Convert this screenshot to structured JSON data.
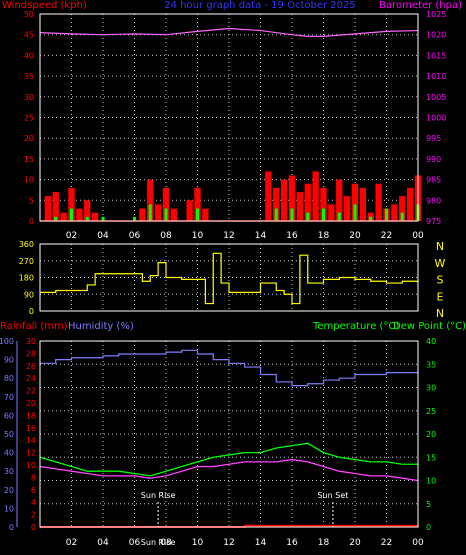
{
  "colors": {
    "background": "#000000",
    "frame": "#ffffff",
    "grid": "#c8c8c8",
    "windspeed_axis": "#ff0000",
    "barometer_axis": "#ff00ff",
    "title": "#3333ff",
    "direction_axis": "#ffff00",
    "rainfall_axis": "#ff0000",
    "humidity_axis": "#7b7bff",
    "temp_axis": "#00ff00",
    "dewpoint_axis": "#00ff00",
    "barometer_line": "#ff66ff",
    "wind_gust": "#ff0000",
    "wind_avg": "#00ff00",
    "wind_peak": "#ffffff",
    "direction_line": "#ffff00",
    "humidity_line": "#8080ff",
    "temp_line": "#00ff00",
    "dewpoint_line": "#ff44ff",
    "rain_line": "#ff0000",
    "marker_text": "#ffffff"
  },
  "chart_data": [
    {
      "type": "line",
      "id": "wind_baro",
      "title": "24 hour graph data - 19 October 2025",
      "ylabel_left": "Windspeed (kph)",
      "ylabel_right": "Barometer (hpa)",
      "grid": true,
      "x_ticks": [
        "02",
        "04",
        "06",
        "08",
        "10",
        "12",
        "14",
        "16",
        "18",
        "20",
        "22",
        "00"
      ],
      "ylim_left": [
        0,
        50
      ],
      "y_ticks_left": [
        0,
        5,
        10,
        15,
        20,
        25,
        30,
        35,
        40,
        45,
        50
      ],
      "ylim_right": [
        975,
        1025
      ],
      "y_ticks_right": [
        975,
        980,
        985,
        990,
        995,
        1000,
        1005,
        1010,
        1015,
        1020,
        1025
      ],
      "series": [
        {
          "name": "Barometer",
          "axis": "right",
          "x": [
            0,
            2,
            4,
            6,
            8,
            10,
            12,
            14,
            16,
            17,
            18,
            20,
            22,
            24
          ],
          "values": [
            1020.5,
            1020.2,
            1020.0,
            1020.2,
            1020.0,
            1020.8,
            1021.5,
            1021.0,
            1020.0,
            1019.6,
            1019.6,
            1020.2,
            1020.8,
            1021.0
          ]
        },
        {
          "name": "Gust",
          "axis": "left",
          "x": [
            0,
            0.5,
            1,
            1.5,
            2,
            2.5,
            3,
            3.5,
            4,
            4.5,
            5,
            5.5,
            6,
            6.5,
            7,
            7.5,
            8,
            8.5,
            9,
            9.5,
            10,
            10.5,
            11,
            11.5,
            12,
            12.5,
            13,
            13.5,
            14,
            14.5,
            15,
            15.5,
            16,
            16.5,
            17,
            17.5,
            18,
            18.5,
            19,
            19.5,
            20,
            20.5,
            21,
            21.5,
            22,
            22.5,
            23,
            23.5,
            24
          ],
          "values": [
            0,
            6,
            7,
            2,
            8,
            3,
            5,
            2,
            0,
            0,
            0,
            0,
            0,
            3,
            10,
            4,
            8,
            3,
            0,
            5,
            8,
            3,
            0,
            0,
            0,
            0,
            0,
            0,
            0,
            12,
            8,
            10,
            11,
            7,
            9,
            12,
            8,
            4,
            10,
            6,
            9,
            8,
            2,
            9,
            3,
            4,
            6,
            8,
            11
          ]
        },
        {
          "name": "Average",
          "axis": "left",
          "x": [
            0,
            1,
            2,
            3,
            4,
            5,
            6,
            7,
            8,
            9,
            10,
            11,
            12,
            13,
            14,
            15,
            16,
            17,
            18,
            19,
            20,
            21,
            22,
            23,
            24
          ],
          "values": [
            0,
            1,
            3,
            1,
            1,
            0,
            1,
            4,
            3,
            0,
            3,
            0,
            0,
            0,
            0,
            3,
            3,
            2,
            3,
            2,
            4,
            1,
            3,
            2,
            4
          ]
        }
      ]
    },
    {
      "type": "line",
      "id": "direction",
      "ylabel_right": [
        "N",
        "W",
        "S",
        "E",
        "N"
      ],
      "grid": true,
      "ylim": [
        0,
        360
      ],
      "y_ticks": [
        0,
        90,
        180,
        270,
        360
      ],
      "series": [
        {
          "name": "Wind Direction",
          "x": [
            0,
            1,
            2,
            3,
            3.5,
            4,
            5,
            6,
            6.5,
            7,
            7.5,
            8,
            9,
            10,
            10.5,
            11,
            11.5,
            12,
            13,
            14,
            15,
            15.5,
            16,
            16.5,
            17,
            18,
            19,
            20,
            21,
            22,
            23,
            24
          ],
          "values": [
            100,
            110,
            110,
            140,
            200,
            200,
            200,
            200,
            160,
            190,
            260,
            180,
            170,
            170,
            40,
            310,
            150,
            100,
            100,
            150,
            110,
            90,
            40,
            300,
            150,
            170,
            180,
            170,
            160,
            150,
            160,
            150
          ]
        }
      ]
    },
    {
      "type": "line",
      "id": "rain_hum_temp",
      "ylabel_left_1": "Rainfall (mm)",
      "ylabel_left_2": "Humidity (%)",
      "ylabel_right_1": "Temperature (°C)",
      "ylabel_right_2": "Dew Point (°C)",
      "grid": true,
      "rain_ticks": [
        0,
        2,
        4,
        6,
        8,
        10,
        12,
        14,
        16,
        18,
        20,
        22,
        24,
        26,
        28,
        30
      ],
      "humidity_ticks": [
        0,
        10,
        20,
        30,
        40,
        50,
        60,
        70,
        80,
        90,
        100
      ],
      "temp_ticks": [
        0,
        5,
        10,
        15,
        20,
        25,
        30,
        35,
        40
      ],
      "ylim_rain": [
        0,
        30
      ],
      "ylim_humidity": [
        0,
        100
      ],
      "ylim_temp": [
        0,
        40
      ],
      "annotations": [
        {
          "text": "Sun Rise",
          "x": 7.5
        },
        {
          "text": "Sun Set",
          "x": 18.6
        }
      ],
      "sun_label": "Sun Rise",
      "series": [
        {
          "name": "Humidity",
          "axis": "humidity",
          "x": [
            0,
            1,
            2,
            3,
            4,
            5,
            6,
            7,
            8,
            9,
            10,
            11,
            12,
            13,
            14,
            15,
            16,
            17,
            18,
            19,
            20,
            21,
            22,
            23,
            24
          ],
          "values": [
            88,
            90,
            91,
            91,
            92,
            93,
            93,
            93,
            94,
            95,
            93,
            90,
            88,
            86,
            82,
            78,
            76,
            77,
            79,
            80,
            82,
            82,
            83,
            83,
            83
          ]
        },
        {
          "name": "Temperature",
          "axis": "temp",
          "x": [
            0,
            1,
            2,
            3,
            4,
            5,
            6,
            7,
            8,
            9,
            10,
            11,
            12,
            13,
            14,
            15,
            16,
            17,
            18,
            19,
            20,
            21,
            22,
            23,
            24
          ],
          "values": [
            15,
            14,
            13,
            12,
            12,
            12,
            11.5,
            11,
            12,
            13,
            14,
            15,
            15.5,
            16,
            16,
            17,
            17.5,
            18,
            16,
            15,
            14.5,
            14,
            14,
            13.5,
            13.5
          ]
        },
        {
          "name": "Dew Point",
          "axis": "temp",
          "x": [
            0,
            1,
            2,
            3,
            4,
            5,
            6,
            7,
            8,
            9,
            10,
            11,
            12,
            13,
            14,
            15,
            16,
            17,
            18,
            19,
            20,
            21,
            22,
            23,
            24
          ],
          "values": [
            13,
            12.5,
            12,
            11.5,
            11,
            11,
            11,
            10.5,
            11,
            12,
            13,
            13,
            13.5,
            14,
            14,
            14,
            14.5,
            14,
            13,
            12,
            11.5,
            11,
            11,
            10.5,
            10
          ]
        },
        {
          "name": "Rainfall",
          "axis": "rain",
          "x": [
            0,
            12,
            13,
            24
          ],
          "values": [
            0,
            0,
            0.2,
            0.2
          ]
        }
      ]
    }
  ]
}
